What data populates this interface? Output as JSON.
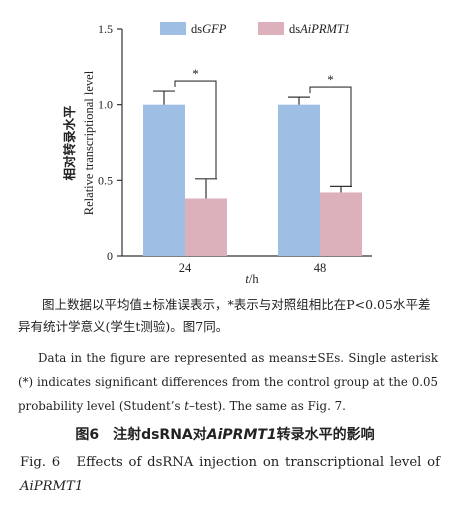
{
  "chart_data": {
    "type": "bar",
    "categories": [
      "24",
      "48"
    ],
    "series": [
      {
        "name": "dsGFP",
        "name_prefix": "ds",
        "name_italic": "GFP",
        "color": "#9ebfe3",
        "values": [
          1.0,
          1.0
        ],
        "errors": [
          0.09,
          0.05
        ]
      },
      {
        "name": "dsAiPRMT1",
        "name_prefix": "ds",
        "name_italic": "AiPRMT1",
        "color": "#dcb1bc",
        "values": [
          0.38,
          0.42
        ],
        "errors": [
          0.13,
          0.04
        ]
      }
    ],
    "significance": [
      "*",
      "*"
    ],
    "ylim": [
      0,
      1.5
    ],
    "yticks": [
      "0",
      "0.5",
      "1.0",
      "1.5"
    ],
    "ylabel_zh": "相对转录水平",
    "ylabel_en": "Relative transcriptional level",
    "xlabel_italic": "t",
    "xlabel_rest": "/h",
    "legend_position": "top"
  },
  "caption": {
    "zh_note": "图上数据以平均值±标准误表示，*表示与对照组相比在P<0.05水平差异有统计学意义(学生t测验)。图7同。",
    "en_note_a": "Data in the figure are represented as means±SEs. Single asterisk (*) indicates significant differences from the control group at the 0.05 probability level (Student’s ",
    "en_note_t": "t",
    "en_note_b": "–test). The same as Fig. 7.",
    "zh_title_a": "图6　注射dsRNA对",
    "zh_title_i": "AiPRMT1",
    "zh_title_b": "转录水平的影响",
    "en_title_a": "Fig. 6　Effects of dsRNA injection on transcriptional level of ",
    "en_title_i": "AiPRMT1"
  }
}
